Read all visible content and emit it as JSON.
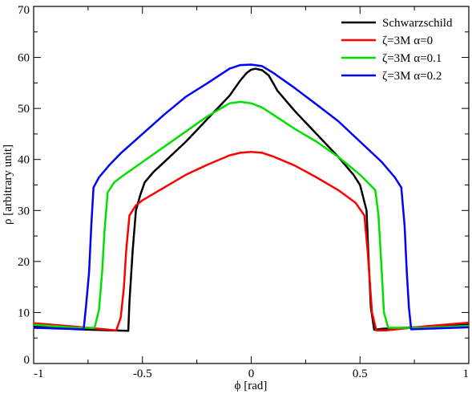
{
  "chart_data": {
    "type": "line",
    "title": "",
    "xlabel": "ϕ [rad]",
    "ylabel": "ρ [arbitrary unit]",
    "xlim": [
      -1,
      1
    ],
    "ylim": [
      0,
      70
    ],
    "x_ticks": [
      -1,
      -0.5,
      0,
      0.5,
      1
    ],
    "x_tick_labels": [
      "-1",
      "-0.5",
      "0",
      "0.5",
      "1"
    ],
    "y_ticks": [
      0,
      10,
      20,
      30,
      40,
      50,
      60,
      70
    ],
    "y_tick_labels": [
      "0",
      "10",
      "20",
      "30",
      "40",
      "50",
      "60",
      "70"
    ],
    "grid": false,
    "legend_position": "top-right",
    "series": [
      {
        "name": "Schwarzschild",
        "color": "#000000",
        "points": [
          [
            -1.0,
            7.3
          ],
          [
            -0.8,
            6.7
          ],
          [
            -0.565,
            6.4
          ],
          [
            -0.56,
            12
          ],
          [
            -0.545,
            22
          ],
          [
            -0.53,
            30
          ],
          [
            -0.51,
            33
          ],
          [
            -0.49,
            35.5
          ],
          [
            -0.45,
            37.5
          ],
          [
            -0.4,
            39.5
          ],
          [
            -0.3,
            43.5
          ],
          [
            -0.2,
            48
          ],
          [
            -0.1,
            52.5
          ],
          [
            -0.05,
            55.5
          ],
          [
            -0.02,
            57
          ],
          [
            0.0,
            57.6
          ],
          [
            0.02,
            57.8
          ],
          [
            0.05,
            57.5
          ],
          [
            0.08,
            56.5
          ],
          [
            0.12,
            53.5
          ],
          [
            0.2,
            49.5
          ],
          [
            0.3,
            45
          ],
          [
            0.4,
            40.5
          ],
          [
            0.47,
            37
          ],
          [
            0.5,
            35
          ],
          [
            0.53,
            30
          ],
          [
            0.54,
            20
          ],
          [
            0.55,
            11
          ],
          [
            0.565,
            6.6
          ],
          [
            0.6,
            6.8
          ],
          [
            0.8,
            7.2
          ],
          [
            1.0,
            7.6
          ]
        ]
      },
      {
        "name": "ζ=3M  α=0",
        "color": "#ff0000",
        "points": [
          [
            -1.0,
            7.9
          ],
          [
            -0.8,
            7.2
          ],
          [
            -0.62,
            6.5
          ],
          [
            -0.6,
            9
          ],
          [
            -0.585,
            15
          ],
          [
            -0.575,
            22
          ],
          [
            -0.56,
            29
          ],
          [
            -0.53,
            31
          ],
          [
            -0.5,
            32
          ],
          [
            -0.4,
            34.5
          ],
          [
            -0.3,
            37
          ],
          [
            -0.2,
            39
          ],
          [
            -0.1,
            40.8
          ],
          [
            -0.05,
            41.3
          ],
          [
            0.0,
            41.5
          ],
          [
            0.05,
            41.3
          ],
          [
            0.1,
            40.6
          ],
          [
            0.2,
            38.8
          ],
          [
            0.3,
            36.5
          ],
          [
            0.4,
            34
          ],
          [
            0.48,
            31.5
          ],
          [
            0.52,
            29
          ],
          [
            0.535,
            22
          ],
          [
            0.545,
            16
          ],
          [
            0.555,
            10
          ],
          [
            0.575,
            6.5
          ],
          [
            0.62,
            6.5
          ],
          [
            0.8,
            7.3
          ],
          [
            1.0,
            8.0
          ]
        ]
      },
      {
        "name": "ζ=3M  α=0.1",
        "color": "#00e000",
        "points": [
          [
            -1.0,
            7.6
          ],
          [
            -0.8,
            7.0
          ],
          [
            -0.72,
            7.0
          ],
          [
            -0.7,
            10.5
          ],
          [
            -0.685,
            18
          ],
          [
            -0.675,
            25.5
          ],
          [
            -0.66,
            33.5
          ],
          [
            -0.63,
            35.5
          ],
          [
            -0.6,
            36.5
          ],
          [
            -0.5,
            39.5
          ],
          [
            -0.4,
            42.5
          ],
          [
            -0.3,
            45.5
          ],
          [
            -0.2,
            48.5
          ],
          [
            -0.1,
            51
          ],
          [
            -0.05,
            51.3
          ],
          [
            0.0,
            51
          ],
          [
            0.05,
            50.2
          ],
          [
            0.1,
            48.8
          ],
          [
            0.2,
            46
          ],
          [
            0.3,
            43.5
          ],
          [
            0.4,
            40.5
          ],
          [
            0.5,
            37
          ],
          [
            0.57,
            34
          ],
          [
            0.585,
            29
          ],
          [
            0.6,
            18
          ],
          [
            0.61,
            10
          ],
          [
            0.63,
            7.0
          ],
          [
            0.8,
            7.0
          ],
          [
            1.0,
            7.4
          ]
        ]
      },
      {
        "name": "ζ=3M  α=0.2",
        "color": "#0000ff",
        "points": [
          [
            -1.0,
            7.0
          ],
          [
            -0.77,
            6.7
          ],
          [
            -0.76,
            11
          ],
          [
            -0.745,
            18
          ],
          [
            -0.735,
            27
          ],
          [
            -0.725,
            34.5
          ],
          [
            -0.7,
            36.5
          ],
          [
            -0.65,
            39
          ],
          [
            -0.6,
            41.2
          ],
          [
            -0.5,
            45
          ],
          [
            -0.4,
            48.8
          ],
          [
            -0.3,
            52.3
          ],
          [
            -0.2,
            55
          ],
          [
            -0.1,
            57.8
          ],
          [
            -0.05,
            58.5
          ],
          [
            0.0,
            58.6
          ],
          [
            0.05,
            58.3
          ],
          [
            0.1,
            57
          ],
          [
            0.2,
            54
          ],
          [
            0.3,
            50.8
          ],
          [
            0.4,
            47.5
          ],
          [
            0.5,
            43.5
          ],
          [
            0.6,
            39.5
          ],
          [
            0.66,
            36.5
          ],
          [
            0.69,
            34.5
          ],
          [
            0.705,
            27
          ],
          [
            0.715,
            18
          ],
          [
            0.725,
            11
          ],
          [
            0.735,
            6.7
          ],
          [
            0.8,
            6.8
          ],
          [
            1.0,
            7.1
          ]
        ]
      }
    ]
  }
}
